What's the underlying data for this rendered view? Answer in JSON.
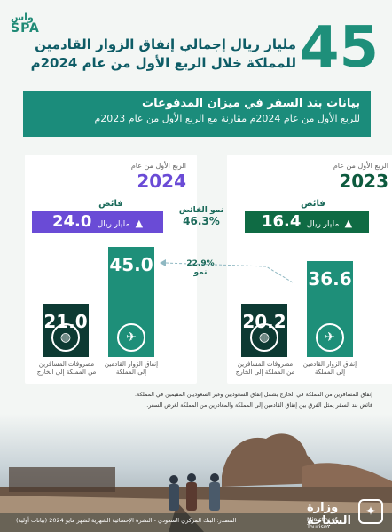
{
  "logo": {
    "line1": "واس",
    "line2": "SPA"
  },
  "header": {
    "big_number": "45",
    "headline_line1": "مليار ريال إجمالي إنفاق الزوار القادمين",
    "headline_line2": "للمملكة خلال الربع الأول من عام 2024م"
  },
  "banner": {
    "title": "بيانات بند السفر في ميزان المدفوعات",
    "subtitle": "للربع الأول من عام 2024م مقارنة مع الربع الأول من عام 2023م"
  },
  "cards": {
    "y2024": {
      "period": "الربع الأول من عام",
      "year": "2024",
      "surplus_label": "فائض",
      "surplus_value": "24.0",
      "surplus_unit": "مليار ريال",
      "inbound_value": "45.0",
      "outbound_value": "21.0",
      "inbound_label_1": "إنفاق الزوار القادمين",
      "inbound_label_2": "إلى المملكة",
      "outbound_label_1": "مصروفات المسافرين",
      "outbound_label_2": "من المملكة إلى الخارج"
    },
    "y2023": {
      "period": "الربع الأول من عام",
      "year": "2023",
      "surplus_label": "فائض",
      "surplus_value": "16.4",
      "surplus_unit": "مليار ريال",
      "inbound_value": "36.6",
      "outbound_value": "20.2",
      "inbound_label_1": "إنفاق الزوار القادمين",
      "inbound_label_2": "إلى المملكة",
      "outbound_label_1": "مصروفات المسافرين",
      "outbound_label_2": "من المملكة إلى الخارج"
    }
  },
  "growth": {
    "surplus_label": "نمو الفائض",
    "surplus_value": "46.3%",
    "inbound_value": "22.9%",
    "inbound_label": "نمو"
  },
  "notes": [
    "إنفاق المسافرين من المملكة في الخارج يشمل إنفاق السعوديين وغير السعوديين المقيمين في المملكة.",
    "فائض بند السفر يمثل الفرق بين إنفاق القادمين إلى المملكة والمغادرين من المملكة لغرض السفر."
  ],
  "footer": {
    "source": "المصدر: البنك المركزي السعودي - النشرة الإحصائية الشهرية لشهر مايو 2024 (بيانات أولية)",
    "ministry_ar": "وزارة السياحة",
    "ministry_en": "Ministry of Tourism"
  },
  "colors": {
    "teal": "#1b8c7b",
    "purple": "#6a4bd6",
    "dark_green": "#0f6b44",
    "dark": "#0d3a33"
  }
}
